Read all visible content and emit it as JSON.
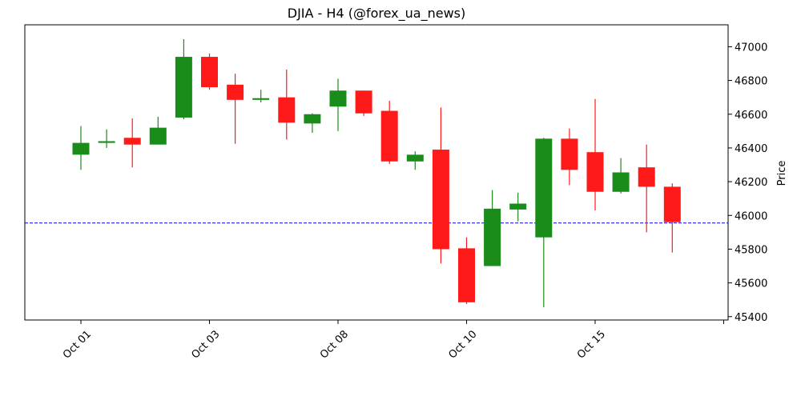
{
  "chart_data": {
    "type": "candlestick",
    "title": "DJIA - H4 (@forex_ua_news)",
    "ylabel": "Price",
    "xlabel": "",
    "ylim": [
      45380,
      47130
    ],
    "y_ticks": [
      45400,
      45600,
      45800,
      46000,
      46200,
      46400,
      46600,
      46800,
      47000
    ],
    "x_ticks": [
      {
        "index": 0,
        "label": "Oct 01"
      },
      {
        "index": 5,
        "label": "Oct 03"
      },
      {
        "index": 10,
        "label": "Oct 08"
      },
      {
        "index": 15,
        "label": "Oct 10"
      },
      {
        "index": 20,
        "label": "Oct 15"
      },
      {
        "index": 25,
        "label": ""
      }
    ],
    "reference_line": {
      "value": 45955,
      "color": "#0000ff",
      "style": "dashed"
    },
    "colors": {
      "up": "#1a8c1a",
      "down": "#ff1a1a",
      "reference": "#0000ff"
    },
    "candles": [
      {
        "open": 46360,
        "high": 46530,
        "low": 46270,
        "close": 46430
      },
      {
        "open": 46430,
        "high": 46510,
        "low": 46400,
        "close": 46440
      },
      {
        "open": 46460,
        "high": 46575,
        "low": 46285,
        "close": 46420
      },
      {
        "open": 46420,
        "high": 46585,
        "low": 46420,
        "close": 46520
      },
      {
        "open": 46580,
        "high": 47045,
        "low": 46570,
        "close": 46940
      },
      {
        "open": 46940,
        "high": 46960,
        "low": 46745,
        "close": 46760
      },
      {
        "open": 46775,
        "high": 46840,
        "low": 46425,
        "close": 46685
      },
      {
        "open": 46685,
        "high": 46745,
        "low": 46670,
        "close": 46695
      },
      {
        "open": 46700,
        "high": 46865,
        "low": 46450,
        "close": 46550
      },
      {
        "open": 46545,
        "high": 46605,
        "low": 46490,
        "close": 46600
      },
      {
        "open": 46645,
        "high": 46810,
        "low": 46500,
        "close": 46740
      },
      {
        "open": 46740,
        "high": 46740,
        "low": 46590,
        "close": 46605
      },
      {
        "open": 46620,
        "high": 46680,
        "low": 46305,
        "close": 46320
      },
      {
        "open": 46320,
        "high": 46380,
        "low": 46270,
        "close": 46360
      },
      {
        "open": 46390,
        "high": 46640,
        "low": 45715,
        "close": 45800
      },
      {
        "open": 45805,
        "high": 45870,
        "low": 45475,
        "close": 45485
      },
      {
        "open": 45700,
        "high": 46150,
        "low": 45700,
        "close": 46040
      },
      {
        "open": 46035,
        "high": 46135,
        "low": 45965,
        "close": 46070
      },
      {
        "open": 45870,
        "high": 46460,
        "low": 45455,
        "close": 46455
      },
      {
        "open": 46455,
        "high": 46515,
        "low": 46180,
        "close": 46270
      },
      {
        "open": 46375,
        "high": 46690,
        "low": 46030,
        "close": 46140
      },
      {
        "open": 46140,
        "high": 46340,
        "low": 46130,
        "close": 46255
      },
      {
        "open": 46285,
        "high": 46420,
        "low": 45900,
        "close": 46170
      },
      {
        "open": 46170,
        "high": 46190,
        "low": 45780,
        "close": 45960
      }
    ]
  }
}
